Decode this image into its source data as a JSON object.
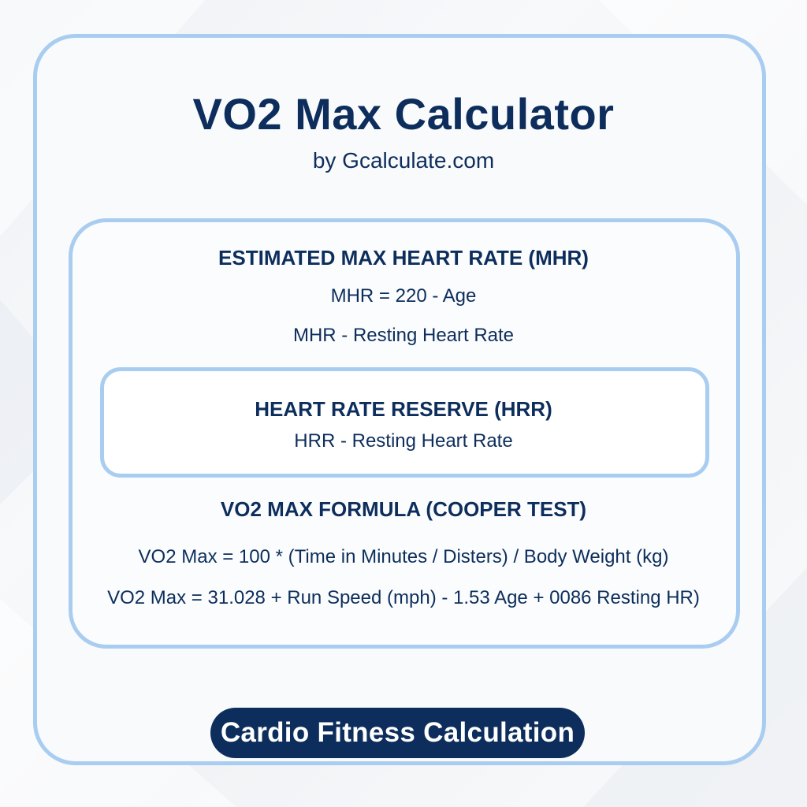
{
  "header": {
    "title": "VO2 Max Calculator",
    "subtitle": "by Gcalculate.com"
  },
  "mhr_section": {
    "heading": "ESTIMATED MAX HEART RATE (MHR)",
    "formula": "MHR = 220 - Age",
    "note": "MHR - Resting Heart Rate"
  },
  "hrr_section": {
    "heading": "HEART RATE RESERVE (HRR)",
    "note": "HRR - Resting Heart Rate"
  },
  "vo2_section": {
    "heading": "VO2 MAX FORMULA (COOPER TEST)",
    "formula_1": "VO2 Max = 100 * (Time in Minutes / Disters) / Body Weight (kg)",
    "formula_2": "VO2 Max = 31.028 + Run Speed (mph) - 1.53 Age + 0086 Resting HR)"
  },
  "footer": {
    "badge_label": "Cardio Fitness Calculation"
  },
  "colors": {
    "navy": "#0d2e5c",
    "border_blue": "#a9cdf0",
    "background": "#f3f5f8"
  }
}
